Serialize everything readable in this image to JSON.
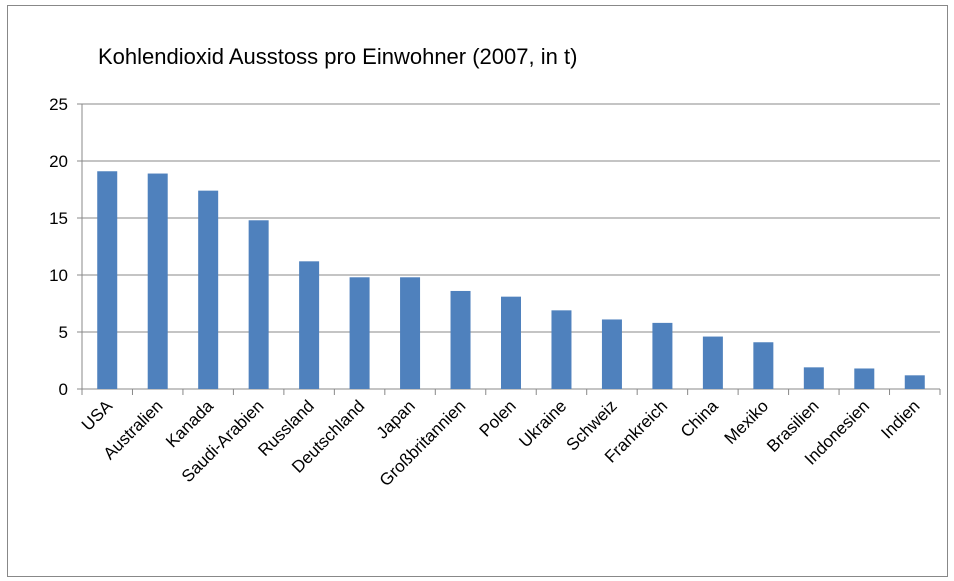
{
  "chart_data": {
    "type": "bar",
    "title": "Kohlendioxid Ausstoss pro Einwohner (2007, in t)",
    "categories": [
      "USA",
      "Australien",
      "Kanada",
      "Saudi-Arabien",
      "Russland",
      "Deutschland",
      "Japan",
      "Großbritannien",
      "Polen",
      "Ukraine",
      "Schweiz",
      "Frankreich",
      "China",
      "Mexiko",
      "Brasilien",
      "Indonesien",
      "Indien"
    ],
    "values": [
      19.1,
      18.9,
      17.4,
      14.8,
      11.2,
      9.8,
      9.8,
      8.6,
      8.1,
      6.9,
      6.1,
      5.8,
      4.6,
      4.1,
      1.9,
      1.8,
      1.2
    ],
    "color": "#4f81bd",
    "ylim": [
      0,
      25
    ],
    "yticks": [
      0,
      5,
      10,
      15,
      20,
      25
    ],
    "grid": true
  }
}
